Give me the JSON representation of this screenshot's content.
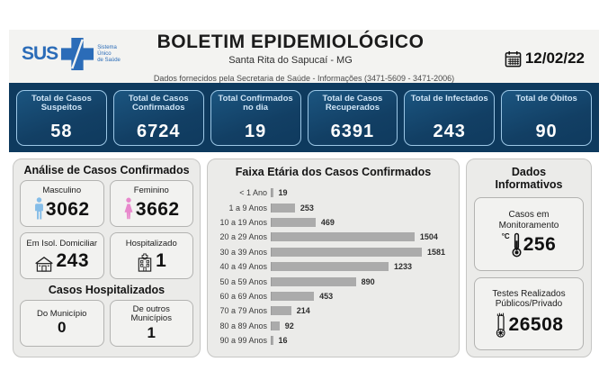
{
  "header": {
    "logo_text": "SUS",
    "logo_tagline_1": "Sistema",
    "logo_tagline_2": "Único",
    "logo_tagline_3": "de Saúde",
    "title": "BOLETIM EPIDEMIOLÓGICO",
    "subtitle": "Santa Rita do Sapucaí - MG",
    "info_line": "Dados fornecidos pela Secretaria de Saúde - Informações (3471-5609 - 3471-2006)",
    "date": "12/02/22"
  },
  "stats_cards": [
    {
      "label": "Total de Casos Suspeitos",
      "value": "58"
    },
    {
      "label": "Total de Casos Confirmados",
      "value": "6724"
    },
    {
      "label": "Total Confirmados no dia",
      "value": "19"
    },
    {
      "label": "Total de Casos Recuperados",
      "value": "6391"
    },
    {
      "label": "Total de Infectados",
      "value": "243"
    },
    {
      "label": "Total de Óbitos",
      "value": "90"
    }
  ],
  "analysis_panel": {
    "title": "Análise de Casos Confirmados",
    "cards": [
      {
        "label": "Masculino",
        "value": "3062",
        "icon": "male-icon"
      },
      {
        "label": "Feminino",
        "value": "3662",
        "icon": "female-icon"
      },
      {
        "label": "Em Isol. Domiciliar",
        "value": "243",
        "icon": "house-icon"
      },
      {
        "label": "Hospitalizado",
        "value": "1",
        "icon": "hospital-icon"
      }
    ],
    "section_title": "Casos Hospitalizados",
    "hospital_cards": [
      {
        "label": "Do Município",
        "value": "0"
      },
      {
        "label": "De outros Municípios",
        "value": "1"
      }
    ]
  },
  "chart_data": {
    "type": "bar",
    "orientation": "horizontal",
    "title": "Faixa Etária dos Casos Confirmados",
    "categories": [
      "< 1 Ano",
      "1 a 9 Anos",
      "10 a 19 Anos",
      "20 a 29 Anos",
      "30 a 39 Anos",
      "40 a 49 Anos",
      "50 a 59 Anos",
      "60 a 69 Anos",
      "70 a 79 Anos",
      "80 a 89 Anos",
      "90 a 99 Anos"
    ],
    "values": [
      19,
      253,
      469,
      1504,
      1581,
      1233,
      890,
      453,
      214,
      92,
      16
    ],
    "xlim": [
      0,
      1581
    ],
    "value_labels": true,
    "grid": false,
    "bar_color": "#ababab"
  },
  "info_panel": {
    "title_line1": "Dados",
    "title_line2": "Informativos",
    "monitor_card": {
      "label": "Casos em Monitoramento",
      "unit": "°C",
      "value": "256",
      "icon": "thermometer-icon"
    },
    "tests_card": {
      "label": "Testes Realizados Públicos/Privado",
      "value": "26508",
      "icon": "test-tube-icon"
    }
  },
  "colors": {
    "band_navy": "#0e3a5e",
    "stat_card_border": "#9cc7e6",
    "stat_label_blue": "#cfe5f7",
    "panel_gray": "#ebebe9",
    "bar_gray": "#ababab",
    "sus_blue": "#2b6cb8",
    "male_blue": "#85bde8",
    "female_pink": "#e888cc"
  }
}
